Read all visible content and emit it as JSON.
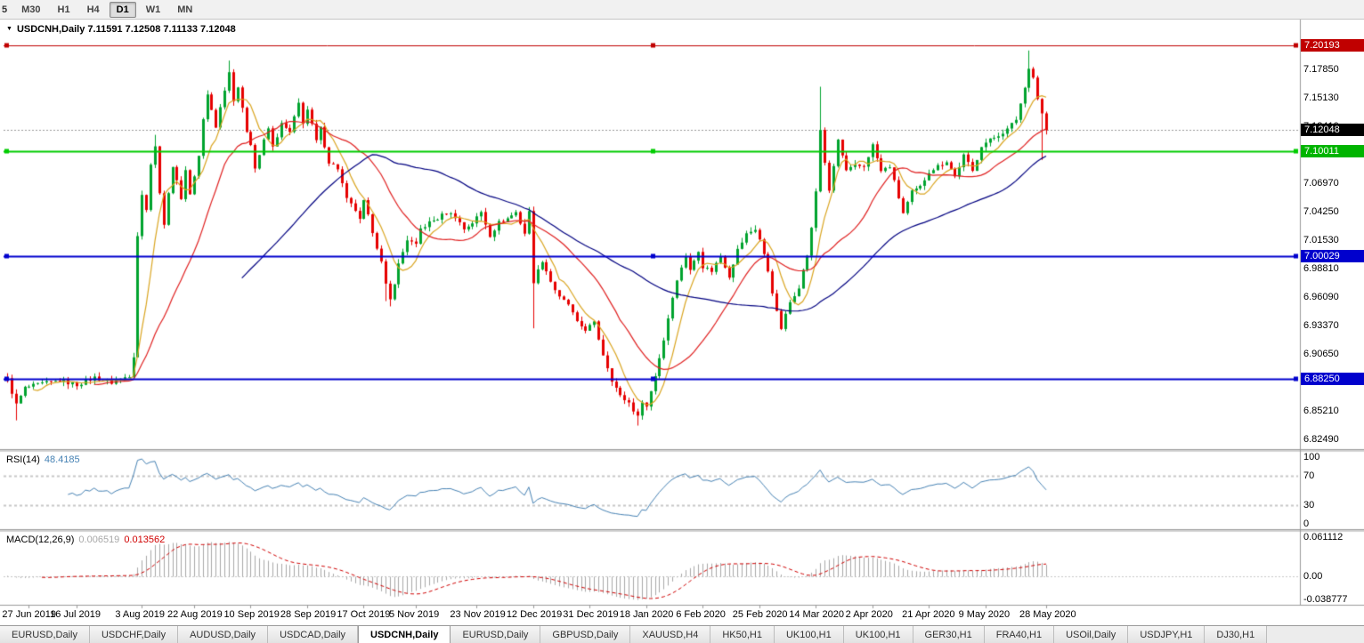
{
  "toolbar": {
    "partial_left": "5",
    "timeframes": [
      {
        "label": "M30",
        "active": false
      },
      {
        "label": "H1",
        "active": false
      },
      {
        "label": "H4",
        "active": false
      },
      {
        "label": "D1",
        "active": true
      },
      {
        "label": "W1",
        "active": false
      },
      {
        "label": "MN",
        "active": false
      }
    ]
  },
  "chart": {
    "symbol": "USDCNH",
    "timeframe": "Daily",
    "title_text": "USDCNH,Daily  7.11591 7.12508 7.11133 7.12048",
    "ohlc": {
      "open": "7.11591",
      "high": "7.12508",
      "low": "7.11133",
      "close": "7.12048"
    },
    "price_scale": {
      "labels": [
        "7.17850",
        "7.15130",
        "7.12410",
        "7.09690",
        "7.06970",
        "7.04250",
        "7.01530",
        "6.98810",
        "6.96090",
        "6.93370",
        "6.90650",
        "6.87930",
        "6.85210",
        "6.82490"
      ],
      "badges": [
        {
          "value": "7.20193",
          "color": "#C00000"
        },
        {
          "value": "7.12048",
          "color": "#000000"
        },
        {
          "value": "7.10011",
          "color": "#00B400"
        },
        {
          "value": "7.00029",
          "color": "#0000CD"
        },
        {
          "value": "6.88250",
          "color": "#0000CD"
        }
      ]
    },
    "hlines": [
      {
        "price": 7.20193,
        "color": "#C00000",
        "width": 1,
        "handles": true
      },
      {
        "price": 7.10011,
        "color": "#00CC00",
        "width": 2,
        "handles": true
      },
      {
        "price": 7.00029,
        "color": "#0000CD",
        "width": 2,
        "handles": true
      },
      {
        "price": 6.8825,
        "color": "#0000CD",
        "width": 2,
        "handles": true
      }
    ],
    "bid_line": {
      "price": 7.12048,
      "color": "#9a9a9a"
    },
    "colors": {
      "bull": "#00A32E",
      "bear": "#E60000",
      "ma_fast": "#DAA520",
      "ma_mid": "#E02020",
      "ma_slow": "#000080"
    },
    "time_axis": [
      {
        "label": "27 Jun 2019",
        "i": 5
      },
      {
        "label": "16 Jul 2019",
        "i": 16
      },
      {
        "label": "3 Aug 2019",
        "i": 31
      },
      {
        "label": "22 Aug 2019",
        "i": 43
      },
      {
        "label": "10 Sep 2019",
        "i": 56
      },
      {
        "label": "28 Sep 2019",
        "i": 69
      },
      {
        "label": "17 Oct 2019",
        "i": 82
      },
      {
        "label": "5 Nov 2019",
        "i": 94
      },
      {
        "label": "23 Nov 2019",
        "i": 108
      },
      {
        "label": "12 Dec 2019",
        "i": 121
      },
      {
        "label": "31 Dec 2019",
        "i": 134
      },
      {
        "label": "18 Jan 2020",
        "i": 147
      },
      {
        "label": "6 Feb 2020",
        "i": 160
      },
      {
        "label": "25 Feb 2020",
        "i": 173
      },
      {
        "label": "14 Mar 2020",
        "i": 186
      },
      {
        "label": "2 Apr 2020",
        "i": 199
      },
      {
        "label": "21 Apr 2020",
        "i": 212
      },
      {
        "label": "9 May 2020",
        "i": 225
      },
      {
        "label": "28 May 2020",
        "i": 239
      }
    ]
  },
  "chart_data": {
    "type": "candlestick",
    "symbol": "USDCNH",
    "timeframe": "Daily",
    "count": 240,
    "first_open": 6.884,
    "last_close": 7.12048,
    "noise": 0.004,
    "y_range": [
      6.8155,
      7.2245
    ],
    "price_anchors": [
      [
        0,
        6.882
      ],
      [
        2,
        6.858
      ],
      [
        4,
        6.874
      ],
      [
        8,
        6.878
      ],
      [
        12,
        6.881
      ],
      [
        16,
        6.877
      ],
      [
        20,
        6.884
      ],
      [
        24,
        6.879
      ],
      [
        28,
        6.886
      ],
      [
        29,
        6.905
      ],
      [
        30,
        7.02
      ],
      [
        31,
        7.058
      ],
      [
        32,
        7.046
      ],
      [
        33,
        7.088
      ],
      [
        34,
        7.104
      ],
      [
        35,
        7.062
      ],
      [
        36,
        7.028
      ],
      [
        37,
        7.062
      ],
      [
        38,
        7.086
      ],
      [
        40,
        7.056
      ],
      [
        41,
        7.082
      ],
      [
        42,
        7.06
      ],
      [
        43,
        7.076
      ],
      [
        44,
        7.096
      ],
      [
        45,
        7.13
      ],
      [
        46,
        7.154
      ],
      [
        47,
        7.14
      ],
      [
        48,
        7.124
      ],
      [
        50,
        7.16
      ],
      [
        51,
        7.176
      ],
      [
        52,
        7.15
      ],
      [
        53,
        7.162
      ],
      [
        54,
        7.14
      ],
      [
        55,
        7.12
      ],
      [
        56,
        7.108
      ],
      [
        57,
        7.084
      ],
      [
        59,
        7.11
      ],
      [
        60,
        7.122
      ],
      [
        61,
        7.104
      ],
      [
        63,
        7.126
      ],
      [
        65,
        7.118
      ],
      [
        67,
        7.146
      ],
      [
        68,
        7.128
      ],
      [
        69,
        7.14
      ],
      [
        71,
        7.11
      ],
      [
        72,
        7.122
      ],
      [
        74,
        7.09
      ],
      [
        76,
        7.084
      ],
      [
        78,
        7.054
      ],
      [
        80,
        7.044
      ],
      [
        81,
        7.034
      ],
      [
        82,
        7.052
      ],
      [
        84,
        7.024
      ],
      [
        86,
        6.994
      ],
      [
        87,
        6.972
      ],
      [
        88,
        6.958
      ],
      [
        90,
        6.992
      ],
      [
        92,
        7.016
      ],
      [
        94,
        7.01
      ],
      [
        95,
        7.026
      ],
      [
        97,
        7.032
      ],
      [
        99,
        7.036
      ],
      [
        101,
        7.042
      ],
      [
        103,
        7.038
      ],
      [
        105,
        7.026
      ],
      [
        107,
        7.032
      ],
      [
        109,
        7.042
      ],
      [
        111,
        7.02
      ],
      [
        113,
        7.032
      ],
      [
        115,
        7.036
      ],
      [
        117,
        7.042
      ],
      [
        119,
        7.022
      ],
      [
        120,
        7.042
      ],
      [
        121,
        6.976
      ],
      [
        123,
        6.996
      ],
      [
        125,
        6.976
      ],
      [
        127,
        6.96
      ],
      [
        129,
        6.954
      ],
      [
        131,
        6.936
      ],
      [
        133,
        6.93
      ],
      [
        135,
        6.936
      ],
      [
        137,
        6.906
      ],
      [
        139,
        6.882
      ],
      [
        141,
        6.866
      ],
      [
        143,
        6.86
      ],
      [
        145,
        6.846
      ],
      [
        146,
        6.862
      ],
      [
        147,
        6.856
      ],
      [
        149,
        6.886
      ],
      [
        151,
        6.92
      ],
      [
        153,
        6.962
      ],
      [
        155,
        6.99
      ],
      [
        156,
        7.0
      ],
      [
        157,
        6.986
      ],
      [
        159,
        7.006
      ],
      [
        160,
        6.99
      ],
      [
        162,
        6.986
      ],
      [
        164,
        7.0
      ],
      [
        166,
        6.981
      ],
      [
        168,
        7.006
      ],
      [
        170,
        7.021
      ],
      [
        172,
        7.026
      ],
      [
        173,
        7.016
      ],
      [
        175,
        6.986
      ],
      [
        177,
        6.946
      ],
      [
        178,
        6.931
      ],
      [
        180,
        6.956
      ],
      [
        182,
        6.971
      ],
      [
        184,
        7.001
      ],
      [
        185,
        7.026
      ],
      [
        186,
        7.062
      ],
      [
        187,
        7.121
      ],
      [
        188,
        7.09
      ],
      [
        189,
        7.061
      ],
      [
        191,
        7.111
      ],
      [
        193,
        7.081
      ],
      [
        195,
        7.086
      ],
      [
        197,
        7.086
      ],
      [
        199,
        7.106
      ],
      [
        201,
        7.081
      ],
      [
        203,
        7.086
      ],
      [
        205,
        7.056
      ],
      [
        206,
        7.041
      ],
      [
        208,
        7.061
      ],
      [
        210,
        7.066
      ],
      [
        212,
        7.081
      ],
      [
        214,
        7.086
      ],
      [
        216,
        7.091
      ],
      [
        218,
        7.076
      ],
      [
        220,
        7.096
      ],
      [
        222,
        7.081
      ],
      [
        224,
        7.106
      ],
      [
        226,
        7.111
      ],
      [
        228,
        7.116
      ],
      [
        230,
        7.121
      ],
      [
        232,
        7.131
      ],
      [
        234,
        7.161
      ],
      [
        235,
        7.181
      ],
      [
        236,
        7.171
      ],
      [
        237,
        7.151
      ],
      [
        238,
        7.136
      ],
      [
        239,
        7.1205
      ]
    ],
    "wick_overrides": {
      "2": {
        "low": 6.843
      },
      "30": {
        "low": 6.915
      },
      "34": {
        "high": 7.116
      },
      "51": {
        "high": 7.187
      },
      "87": {
        "low": 6.957
      },
      "88": {
        "low": 6.952
      },
      "121": {
        "low": 6.931
      },
      "145": {
        "low": 6.838
      },
      "187": {
        "high": 7.162
      },
      "235": {
        "high": 7.1966
      },
      "238": {
        "low": 7.092
      }
    },
    "moving_averages": [
      {
        "period": 7,
        "color": "#DAA520"
      },
      {
        "period": 21,
        "color": "#E02020"
      },
      {
        "period": 55,
        "color": "#000080"
      }
    ]
  },
  "rsi": {
    "label": "RSI(14)",
    "value": "48.4185",
    "period": 14,
    "color": "#4682B4",
    "levels": [
      {
        "text": "100",
        "value": 100
      },
      {
        "text": "70",
        "value": 70
      },
      {
        "text": "30",
        "value": 30
      },
      {
        "text": "0",
        "value": 0
      }
    ]
  },
  "macd": {
    "label": "MACD(12,26,9)",
    "main_value": "0.006519",
    "signal_value": "0.013562",
    "fast": 12,
    "slow": 26,
    "signal": 9,
    "hist_color": "#A8A8A8",
    "signal_color": "#D00000",
    "range": [
      -0.0455,
      0.0694
    ],
    "scale": [
      {
        "text": "0.061112",
        "value": 0.061112
      },
      {
        "text": "0.00",
        "value": 0.0
      },
      {
        "text": "-0.038777",
        "value": -0.038777
      }
    ]
  },
  "tabs": [
    {
      "label": "EURUSD,Daily",
      "active": false
    },
    {
      "label": "USDCHF,Daily",
      "active": false
    },
    {
      "label": "AUDUSD,Daily",
      "active": false
    },
    {
      "label": "USDCAD,Daily",
      "active": false
    },
    {
      "label": "USDCNH,Daily",
      "active": true
    },
    {
      "label": "EURUSD,Daily",
      "active": false
    },
    {
      "label": "GBPUSD,Daily",
      "active": false
    },
    {
      "label": "XAUUSD,H4",
      "active": false
    },
    {
      "label": "HK50,H1",
      "active": false
    },
    {
      "label": "UK100,H1",
      "active": false
    },
    {
      "label": "UK100,H1",
      "active": false
    },
    {
      "label": "GER30,H1",
      "active": false
    },
    {
      "label": "FRA40,H1",
      "active": false
    },
    {
      "label": "USOil,Daily",
      "active": false
    },
    {
      "label": "USDJPY,H1",
      "active": false
    },
    {
      "label": "DJ30,H1",
      "active": false
    }
  ]
}
